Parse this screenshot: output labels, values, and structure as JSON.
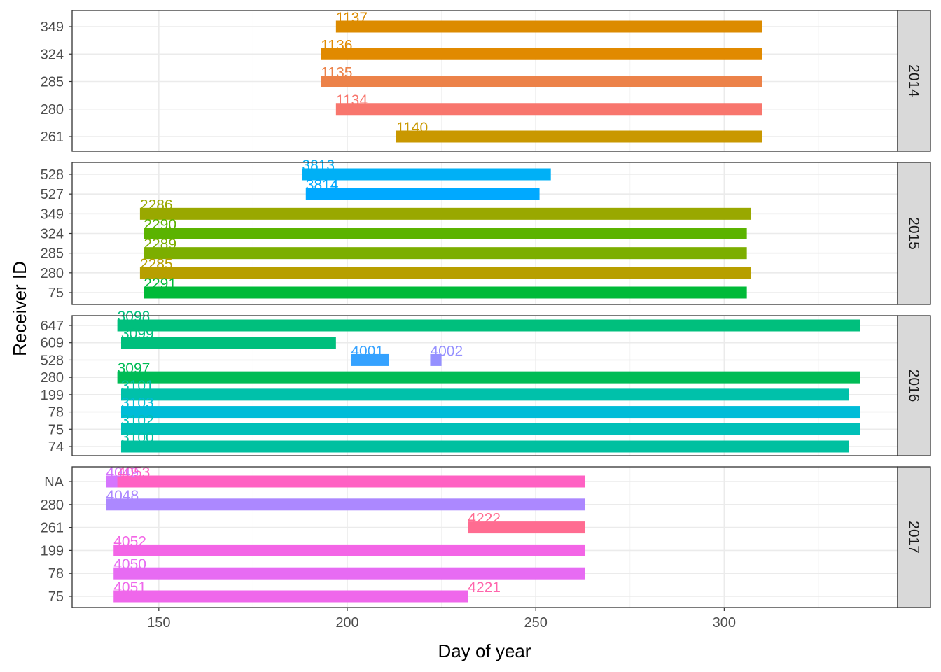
{
  "chart_data": {
    "type": "bar",
    "orientation": "horizontal-range",
    "xlabel": "Day of year",
    "ylabel": "Receiver ID",
    "xlim": [
      127,
      346
    ],
    "xticks": [
      150,
      200,
      250,
      300
    ],
    "grid": true,
    "facets": [
      {
        "name": "2014",
        "rows": [
          "261",
          "280",
          "285",
          "324",
          "349"
        ],
        "bars": [
          {
            "receiver": "349",
            "tag": "1137",
            "start": 197,
            "end": 310,
            "color": "#DC8B00"
          },
          {
            "receiver": "324",
            "tag": "1136",
            "start": 193,
            "end": 310,
            "color": "#E18A00"
          },
          {
            "receiver": "285",
            "tag": "1135",
            "start": 193,
            "end": 310,
            "color": "#EC8249"
          },
          {
            "receiver": "280",
            "tag": "1134",
            "start": 197,
            "end": 310,
            "color": "#F8766D"
          },
          {
            "receiver": "261",
            "tag": "1140",
            "start": 213,
            "end": 310,
            "color": "#C99800"
          }
        ]
      },
      {
        "name": "2015",
        "rows": [
          "75",
          "280",
          "285",
          "324",
          "349",
          "527",
          "528"
        ],
        "bars": [
          {
            "receiver": "528",
            "tag": "3813",
            "start": 188,
            "end": 254,
            "color": "#00B0F6"
          },
          {
            "receiver": "527",
            "tag": "3814",
            "start": 189,
            "end": 251,
            "color": "#00A9FF"
          },
          {
            "receiver": "349",
            "tag": "2286",
            "start": 145,
            "end": 307,
            "color": "#99A800"
          },
          {
            "receiver": "324",
            "tag": "2290",
            "start": 146,
            "end": 306,
            "color": "#5BB300"
          },
          {
            "receiver": "285",
            "tag": "2289",
            "start": 146,
            "end": 306,
            "color": "#7CAE00"
          },
          {
            "receiver": "280",
            "tag": "2285",
            "start": 145,
            "end": 307,
            "color": "#B79F00"
          },
          {
            "receiver": "75",
            "tag": "2291",
            "start": 146,
            "end": 306,
            "color": "#00BA38"
          }
        ]
      },
      {
        "name": "2016",
        "rows": [
          "74",
          "75",
          "78",
          "199",
          "280",
          "528",
          "609",
          "647"
        ],
        "bars": [
          {
            "receiver": "647",
            "tag": "3098",
            "start": 139,
            "end": 336,
            "color": "#00BF7D"
          },
          {
            "receiver": "609",
            "tag": "3099",
            "start": 140,
            "end": 197,
            "color": "#00BF7D"
          },
          {
            "receiver": "528",
            "tag": "4001",
            "start": 201,
            "end": 211,
            "color": "#35A2FF"
          },
          {
            "receiver": "528",
            "tag": "4002",
            "start": 222,
            "end": 225,
            "color": "#9590FF"
          },
          {
            "receiver": "280",
            "tag": "3097",
            "start": 139,
            "end": 336,
            "color": "#00BC56"
          },
          {
            "receiver": "199",
            "tag": "3101",
            "start": 140,
            "end": 333,
            "color": "#00C1AA"
          },
          {
            "receiver": "78",
            "tag": "3103",
            "start": 140,
            "end": 336,
            "color": "#00BCD8"
          },
          {
            "receiver": "75",
            "tag": "3102",
            "start": 140,
            "end": 336,
            "color": "#00C0B8"
          },
          {
            "receiver": "74",
            "tag": "3100",
            "start": 140,
            "end": 333,
            "color": "#00C0A0"
          }
        ]
      },
      {
        "name": "2017",
        "rows": [
          "75",
          "78",
          "199",
          "261",
          "280",
          "NA"
        ],
        "bars": [
          {
            "receiver": "NA",
            "tag": "4049",
            "start": 136,
            "end": 263,
            "color": "#D575FE"
          },
          {
            "receiver": "NA",
            "tag": "4053",
            "start": 139,
            "end": 263,
            "color": "#FF61C3"
          },
          {
            "receiver": "280",
            "tag": "4048",
            "start": 136,
            "end": 263,
            "color": "#AC88FF"
          },
          {
            "receiver": "261",
            "tag": "4222",
            "start": 232,
            "end": 263,
            "color": "#FF6C91"
          },
          {
            "receiver": "199",
            "tag": "4052",
            "start": 138,
            "end": 263,
            "color": "#F365E6"
          },
          {
            "receiver": "78",
            "tag": "4050",
            "start": 138,
            "end": 263,
            "color": "#E76BF3"
          },
          {
            "receiver": "75",
            "tag": "4051",
            "start": 138,
            "end": 232,
            "color": "#EF67EB"
          },
          {
            "receiver": "75",
            "tag": "4221",
            "start": 232,
            "end": 232,
            "color": "#FF65AC"
          }
        ]
      }
    ]
  }
}
